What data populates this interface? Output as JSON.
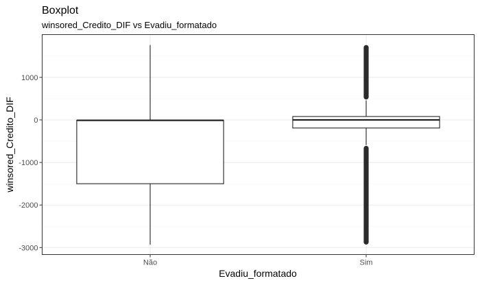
{
  "chart_data": {
    "type": "boxplot",
    "title": "Boxplot",
    "subtitle": "winsored_Credito_DIF vs Evadiu_formatado",
    "xlabel": "Evadiu_formatado",
    "ylabel": "winsored_Credito_DIF",
    "categories": [
      "Não",
      "Sim"
    ],
    "ylim": [
      -3150,
      1900
    ],
    "yticks": [
      1000,
      0,
      -1000,
      -2000,
      -3000
    ],
    "grid": true,
    "boxes": [
      {
        "category": "Não",
        "min": -2930,
        "q1": -1500,
        "median": -10,
        "q3": -10,
        "max": 1760,
        "outliers": []
      },
      {
        "category": "Sim",
        "min": -590,
        "q1": -190,
        "median": 0,
        "q3": 80,
        "max": 460,
        "outlier_ranges": [
          [
            480,
            1760
          ],
          [
            -2930,
            -610
          ]
        ]
      }
    ]
  }
}
